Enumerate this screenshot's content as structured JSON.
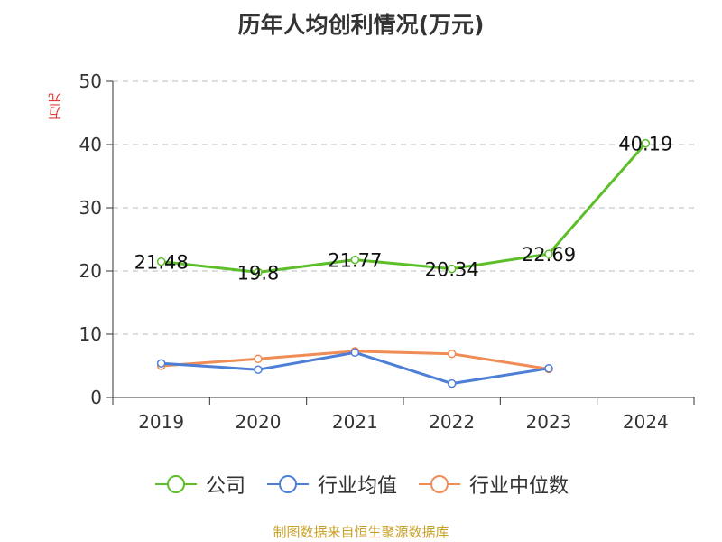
{
  "chart_data": {
    "type": "line",
    "title": "历年人均创利情况(万元)",
    "ylabel": "万元",
    "categories": [
      "2019",
      "2020",
      "2021",
      "2022",
      "2023",
      "2024"
    ],
    "ylim": [
      0,
      50
    ],
    "yticks": [
      0,
      10,
      20,
      30,
      40,
      50
    ],
    "grid": true,
    "legend_position": "bottom",
    "series": [
      {
        "name": "公司",
        "color": "#5cbf2a",
        "values": [
          21.48,
          19.8,
          21.77,
          20.34,
          22.69,
          40.19
        ],
        "labels": [
          "21.48",
          "19.8",
          "21.77",
          "20.34",
          "22.69",
          "40.19"
        ]
      },
      {
        "name": "行业均值",
        "color": "#4e7fd6",
        "values": [
          5.4,
          4.4,
          7.1,
          2.2,
          4.6,
          null
        ]
      },
      {
        "name": "行业中位数",
        "color": "#f08c55",
        "values": [
          5.0,
          6.1,
          7.3,
          6.9,
          4.5,
          null
        ]
      }
    ]
  },
  "source": "制图数据来自恒生聚源数据库"
}
